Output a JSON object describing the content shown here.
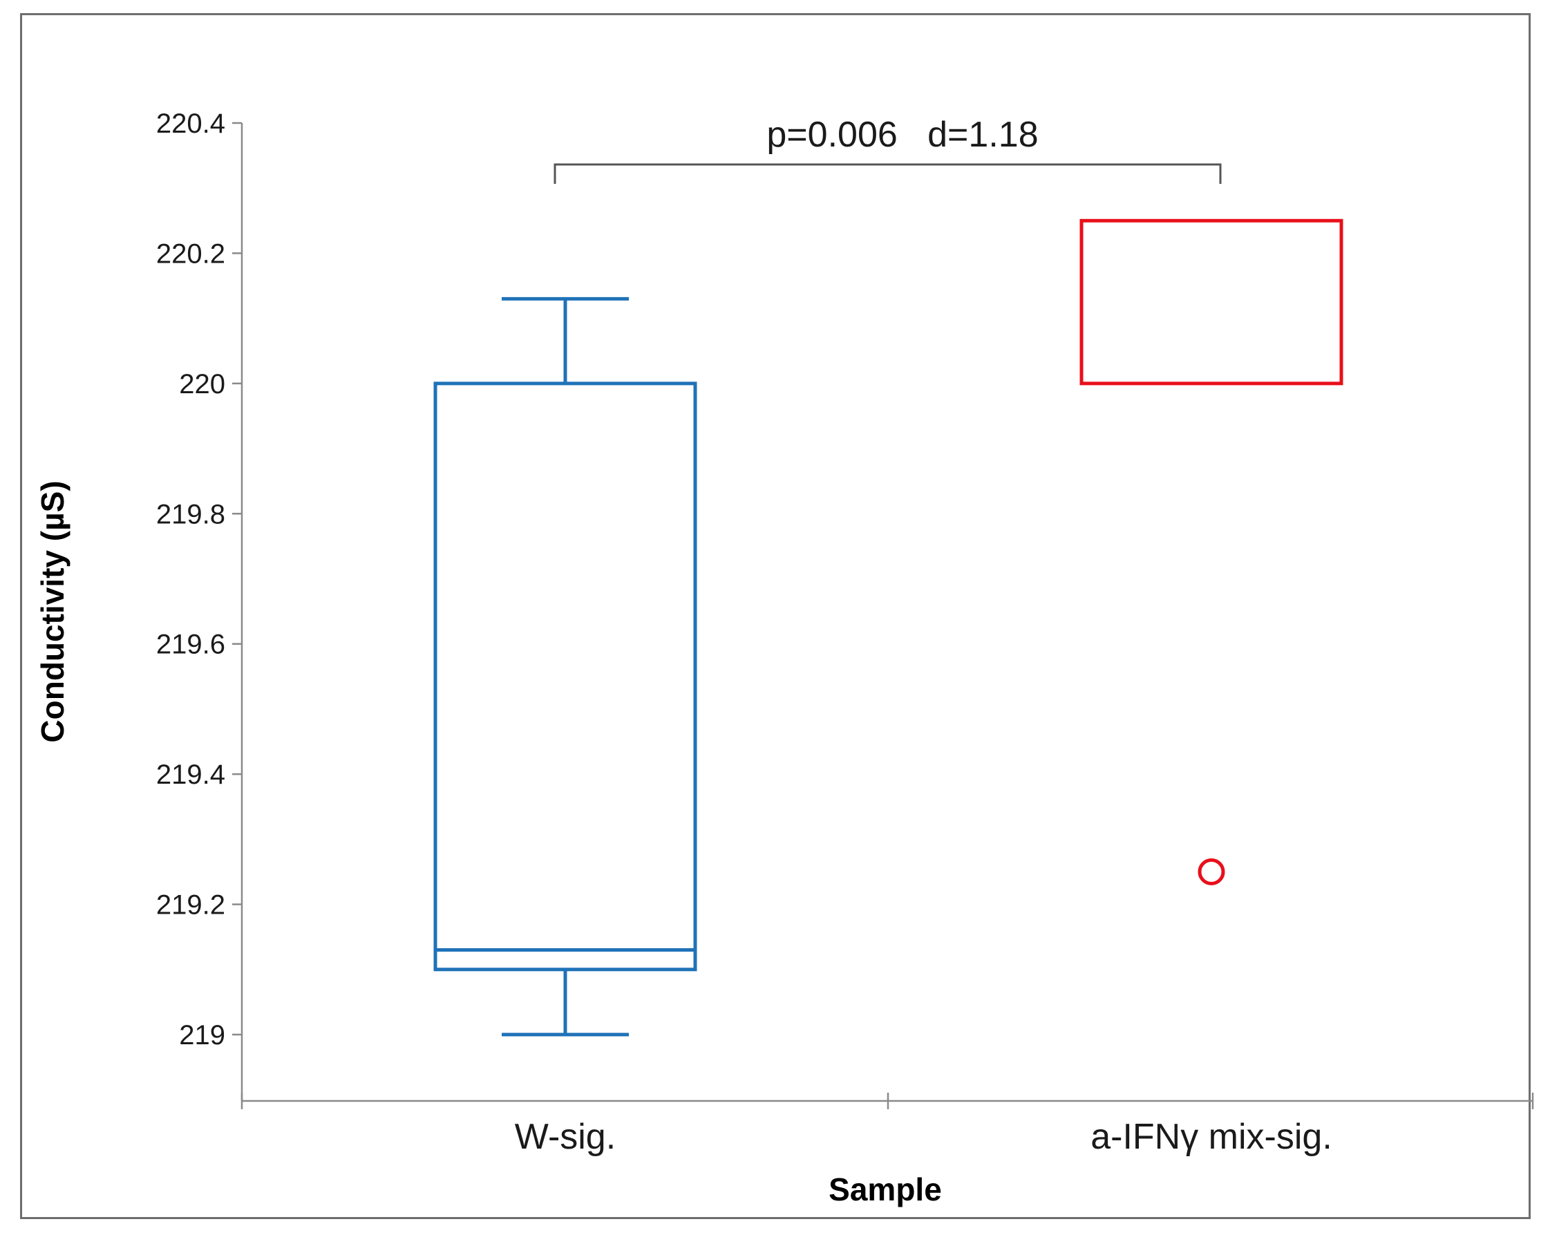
{
  "chart_data": {
    "type": "boxplot",
    "xlabel": "Sample",
    "ylabel": "Conductivity  (µS)",
    "ylim": [
      218.9,
      220.4
    ],
    "yticks": [
      "219",
      "219.2",
      "219.4",
      "219.6",
      "219.8",
      "220",
      "220.2",
      "220.4"
    ],
    "ytick_values": [
      219,
      219.2,
      219.4,
      219.6,
      219.8,
      220,
      220.2,
      220.4
    ],
    "categories": [
      "W-sig.",
      "a-IFNγ mix-sig."
    ],
    "series": [
      {
        "category": "W-sig.",
        "color": "#1f72b8",
        "whisker_low": 219.0,
        "q1": 219.1,
        "median": 219.13,
        "q3": 220.0,
        "whisker_high": 220.13,
        "outliers": []
      },
      {
        "category": "a-IFNγ mix-sig.",
        "color": "#e8101a",
        "whisker_low": 220.0,
        "q1": 220.0,
        "median": 220.25,
        "q3": 220.25,
        "whisker_high": 220.25,
        "outliers": [
          219.25
        ]
      }
    ],
    "annotation": {
      "text": "p=0.006   d=1.18",
      "from_category": "W-sig.",
      "to_category": "a-IFNγ mix-sig."
    },
    "grid": false,
    "legend": "none"
  }
}
